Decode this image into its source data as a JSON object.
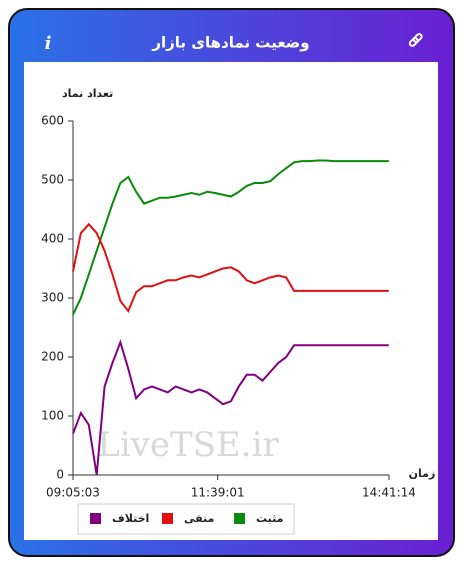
{
  "chart_data": {
    "type": "line",
    "title": "وضعیت نمادهای بازار",
    "info_icon": "i",
    "y_label": "تعداد نماد",
    "x_label": "زمان",
    "watermark": "LiveTSE.ir",
    "x": [
      32703,
      33207,
      33711,
      34215,
      34719,
      35223,
      35727,
      36231,
      36735,
      37239,
      37743,
      38247,
      38751,
      39255,
      39759,
      40263,
      40767,
      41271,
      41775,
      42279,
      42783,
      43287,
      43791,
      44295,
      44799,
      45303,
      45807,
      46311,
      46815,
      47319,
      47823,
      48327,
      48831,
      49335,
      49839,
      50343,
      50847,
      51351,
      51855,
      52359,
      52863
    ],
    "xlim": [
      32703,
      52874
    ],
    "xticks": [
      {
        "value": 32703,
        "label": "09:05:03"
      },
      {
        "value": 41941,
        "label": "11:39:01"
      },
      {
        "value": 52874,
        "label": "14:41:14"
      }
    ],
    "ylim": [
      0,
      600
    ],
    "yticks": [
      0,
      100,
      200,
      300,
      400,
      500,
      600
    ],
    "series": [
      {
        "name": "مثبت",
        "color": "#0a8a0a",
        "values": [
          272,
          300,
          340,
          380,
          420,
          460,
          495,
          505,
          480,
          460,
          465,
          470,
          470,
          472,
          475,
          478,
          475,
          480,
          478,
          475,
          472,
          480,
          490,
          495,
          495,
          498,
          510,
          520,
          530,
          532,
          532,
          533,
          533,
          532,
          532,
          532,
          532,
          532,
          532,
          532,
          532
        ]
      },
      {
        "name": "منفی",
        "color": "#e01010",
        "values": [
          345,
          410,
          425,
          410,
          380,
          340,
          295,
          278,
          310,
          320,
          320,
          325,
          330,
          330,
          335,
          338,
          335,
          340,
          345,
          350,
          352,
          345,
          330,
          325,
          330,
          335,
          338,
          335,
          312,
          312,
          312,
          312,
          312,
          312,
          312,
          312,
          312,
          312,
          312,
          312,
          312
        ]
      },
      {
        "name": "اختلاف",
        "color": "#800080",
        "values": [
          70,
          105,
          85,
          0,
          150,
          190,
          225,
          180,
          130,
          145,
          150,
          145,
          140,
          150,
          145,
          140,
          145,
          140,
          130,
          120,
          125,
          150,
          170,
          170,
          160,
          175,
          190,
          200,
          220,
          220,
          220,
          220,
          220,
          220,
          220,
          220,
          220,
          220,
          220,
          220,
          220
        ]
      }
    ]
  }
}
